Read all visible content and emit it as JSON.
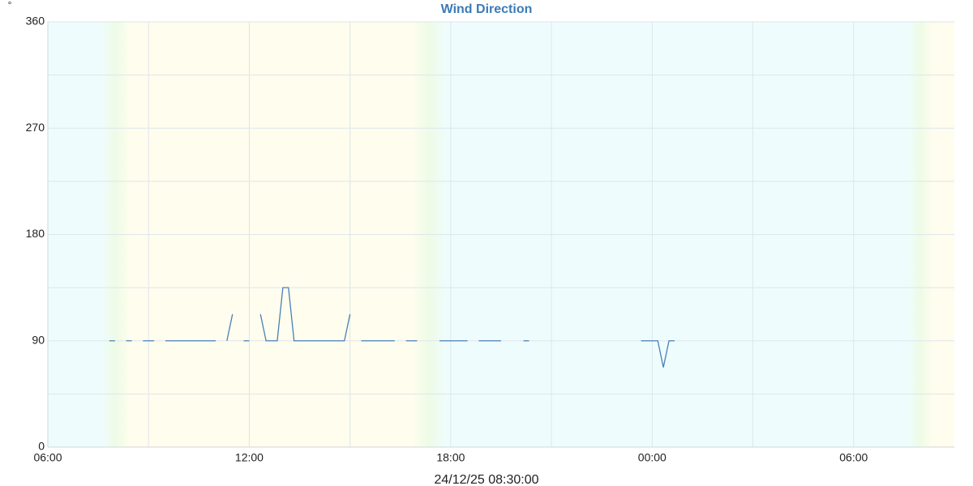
{
  "chart_data": {
    "type": "line",
    "title": "Wind Direction",
    "y_label": "°",
    "annotation": "24/12/25 08:30:00",
    "color": "#4a80b8",
    "x": [
      1.833,
      2,
      2.167,
      2.333,
      2.5,
      2.667,
      2.833,
      3,
      3.167,
      3.333,
      3.5,
      3.667,
      3.833,
      4,
      4.167,
      4.333,
      4.5,
      4.667,
      4.833,
      5,
      5.167,
      5.333,
      5.5,
      5.667,
      5.833,
      6,
      6.167,
      6.333,
      6.5,
      6.667,
      6.833,
      7,
      7.167,
      7.333,
      7.5,
      7.667,
      7.833,
      8,
      8.167,
      8.333,
      8.5,
      8.667,
      8.833,
      9,
      9.167,
      9.333,
      9.5,
      9.667,
      9.833,
      10,
      10.167,
      10.333,
      10.5,
      10.667,
      10.833,
      11,
      11.167,
      11.667,
      11.833,
      12,
      12.167,
      12.333,
      12.5,
      12.667,
      12.833,
      13,
      13.167,
      13.333,
      13.5,
      13.667,
      14.167,
      14.333,
      14.5,
      17.667,
      17.833,
      18,
      18.167,
      18.333,
      18.5,
      18.667
    ],
    "values": [
      90,
      90,
      null,
      90,
      90,
      null,
      90,
      90,
      90,
      null,
      90,
      90,
      90,
      90,
      90,
      90,
      90,
      90,
      90,
      90,
      null,
      90,
      112.5,
      null,
      90,
      90,
      null,
      112.5,
      90,
      90,
      90,
      135,
      135,
      90,
      90,
      90,
      90,
      90,
      90,
      90,
      90,
      90,
      90,
      112.5,
      null,
      90,
      90,
      90,
      90,
      90,
      90,
      90,
      null,
      90,
      90,
      90,
      null,
      90,
      90,
      90,
      90,
      90,
      90,
      null,
      90,
      90,
      90,
      90,
      90,
      null,
      90,
      90,
      null,
      90,
      90,
      90,
      90,
      67.5,
      90,
      90
    ],
    "xlim": [
      0,
      27
    ],
    "xticks": [
      {
        "value": 0,
        "label": "06:00"
      },
      {
        "value": 6,
        "label": "12:00"
      },
      {
        "value": 12,
        "label": "18:00"
      },
      {
        "value": 18,
        "label": "00:00"
      },
      {
        "value": 24,
        "label": "06:00"
      }
    ],
    "xminor": [
      3,
      9,
      15,
      21
    ],
    "ylim": [
      0,
      360
    ],
    "yticks": [
      0,
      90,
      180,
      270,
      360
    ],
    "yminor": [
      45,
      135,
      225,
      315
    ],
    "grid": true
  }
}
